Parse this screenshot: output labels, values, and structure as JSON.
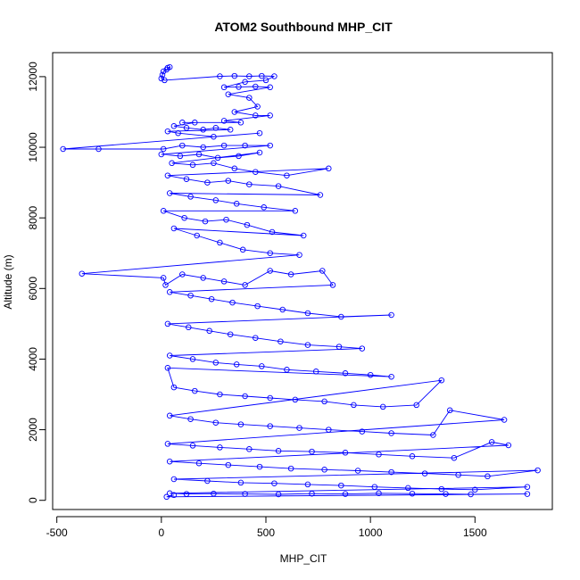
{
  "chart_data": {
    "type": "scatter",
    "title": "ATOM2 Southbound MHP_CIT",
    "xlabel": "MHP_CIT",
    "ylabel": "Altitude (m)",
    "xlim": [
      -520,
      1870
    ],
    "ylim": [
      -260,
      12680
    ],
    "x_ticks": [
      -500,
      0,
      500,
      1000,
      1500
    ],
    "x_tick_labels": [
      "-500",
      "0",
      "500",
      "1000",
      "1500"
    ],
    "y_ticks": [
      0,
      2000,
      4000,
      6000,
      8000,
      10000,
      12000
    ],
    "y_tick_labels": [
      "0",
      "2000",
      "4000",
      "6000",
      "8000",
      "10000",
      "12000"
    ],
    "grid": false,
    "legend": "none",
    "marker": "open-circle",
    "line": true,
    "color": "#0000ff",
    "series": [
      {
        "points": [
          [
            30,
            12250
          ],
          [
            40,
            12270
          ],
          [
            25,
            12200
          ],
          [
            10,
            12150
          ],
          [
            5,
            12050
          ],
          [
            0,
            11950
          ],
          [
            15,
            11900
          ],
          [
            280,
            12010
          ],
          [
            350,
            12020
          ],
          [
            420,
            12010
          ],
          [
            480,
            12020
          ],
          [
            540,
            12010
          ],
          [
            500,
            11900
          ],
          [
            400,
            11850
          ],
          [
            300,
            11700
          ],
          [
            370,
            11710
          ],
          [
            450,
            11720
          ],
          [
            520,
            11700
          ],
          [
            320,
            11500
          ],
          [
            420,
            11400
          ],
          [
            460,
            11150
          ],
          [
            350,
            11000
          ],
          [
            450,
            10900
          ],
          [
            520,
            10900
          ],
          [
            300,
            10750
          ],
          [
            380,
            10700
          ],
          [
            100,
            10700
          ],
          [
            160,
            10700
          ],
          [
            60,
            10600
          ],
          [
            120,
            10550
          ],
          [
            200,
            10500
          ],
          [
            260,
            10550
          ],
          [
            330,
            10500
          ],
          [
            30,
            10450
          ],
          [
            80,
            10400
          ],
          [
            250,
            10300
          ],
          [
            470,
            10400
          ],
          [
            -470,
            9950
          ],
          [
            -300,
            9950
          ],
          [
            10,
            9950
          ],
          [
            100,
            10050
          ],
          [
            200,
            10000
          ],
          [
            300,
            10050
          ],
          [
            400,
            10050
          ],
          [
            520,
            10050
          ],
          [
            0,
            9800
          ],
          [
            90,
            9750
          ],
          [
            180,
            9800
          ],
          [
            270,
            9700
          ],
          [
            370,
            9750
          ],
          [
            470,
            9850
          ],
          [
            50,
            9550
          ],
          [
            150,
            9500
          ],
          [
            250,
            9550
          ],
          [
            350,
            9400
          ],
          [
            450,
            9300
          ],
          [
            600,
            9200
          ],
          [
            800,
            9400
          ],
          [
            30,
            9200
          ],
          [
            120,
            9100
          ],
          [
            220,
            9000
          ],
          [
            320,
            9050
          ],
          [
            420,
            8950
          ],
          [
            560,
            8900
          ],
          [
            760,
            8650
          ],
          [
            40,
            8700
          ],
          [
            140,
            8600
          ],
          [
            260,
            8500
          ],
          [
            360,
            8400
          ],
          [
            490,
            8300
          ],
          [
            640,
            8200
          ],
          [
            10,
            8200
          ],
          [
            110,
            8000
          ],
          [
            210,
            7900
          ],
          [
            310,
            7950
          ],
          [
            410,
            7800
          ],
          [
            530,
            7600
          ],
          [
            680,
            7500
          ],
          [
            60,
            7700
          ],
          [
            170,
            7500
          ],
          [
            280,
            7300
          ],
          [
            390,
            7100
          ],
          [
            520,
            7000
          ],
          [
            660,
            6950
          ],
          [
            -380,
            6420
          ],
          [
            10,
            6300
          ],
          [
            20,
            6100
          ],
          [
            100,
            6400
          ],
          [
            200,
            6300
          ],
          [
            300,
            6200
          ],
          [
            400,
            6100
          ],
          [
            520,
            6500
          ],
          [
            620,
            6400
          ],
          [
            770,
            6500
          ],
          [
            820,
            6100
          ],
          [
            40,
            5900
          ],
          [
            140,
            5800
          ],
          [
            240,
            5700
          ],
          [
            340,
            5600
          ],
          [
            460,
            5500
          ],
          [
            580,
            5400
          ],
          [
            700,
            5300
          ],
          [
            860,
            5200
          ],
          [
            1100,
            5250
          ],
          [
            30,
            5000
          ],
          [
            130,
            4900
          ],
          [
            230,
            4800
          ],
          [
            330,
            4700
          ],
          [
            450,
            4600
          ],
          [
            570,
            4500
          ],
          [
            700,
            4400
          ],
          [
            850,
            4350
          ],
          [
            960,
            4300
          ],
          [
            40,
            4100
          ],
          [
            150,
            4000
          ],
          [
            260,
            3900
          ],
          [
            360,
            3850
          ],
          [
            480,
            3800
          ],
          [
            600,
            3700
          ],
          [
            740,
            3650
          ],
          [
            880,
            3600
          ],
          [
            1000,
            3550
          ],
          [
            1100,
            3500
          ],
          [
            30,
            3750
          ],
          [
            60,
            3200
          ],
          [
            160,
            3100
          ],
          [
            280,
            3000
          ],
          [
            400,
            2950
          ],
          [
            520,
            2900
          ],
          [
            640,
            2850
          ],
          [
            780,
            2800
          ],
          [
            920,
            2700
          ],
          [
            1060,
            2650
          ],
          [
            1220,
            2700
          ],
          [
            1340,
            3400
          ],
          [
            40,
            2400
          ],
          [
            140,
            2300
          ],
          [
            260,
            2200
          ],
          [
            380,
            2150
          ],
          [
            520,
            2100
          ],
          [
            660,
            2050
          ],
          [
            800,
            2000
          ],
          [
            960,
            1950
          ],
          [
            1100,
            1900
          ],
          [
            1300,
            1850
          ],
          [
            1380,
            2550
          ],
          [
            1640,
            2280
          ],
          [
            30,
            1600
          ],
          [
            150,
            1550
          ],
          [
            280,
            1500
          ],
          [
            420,
            1450
          ],
          [
            560,
            1400
          ],
          [
            720,
            1380
          ],
          [
            880,
            1350
          ],
          [
            1040,
            1300
          ],
          [
            1200,
            1250
          ],
          [
            1400,
            1200
          ],
          [
            1580,
            1650
          ],
          [
            1660,
            1560
          ],
          [
            40,
            1100
          ],
          [
            180,
            1050
          ],
          [
            320,
            1000
          ],
          [
            470,
            950
          ],
          [
            620,
            900
          ],
          [
            780,
            870
          ],
          [
            940,
            840
          ],
          [
            1100,
            800
          ],
          [
            1260,
            760
          ],
          [
            1420,
            720
          ],
          [
            1560,
            680
          ],
          [
            1800,
            850
          ],
          [
            60,
            600
          ],
          [
            220,
            550
          ],
          [
            380,
            500
          ],
          [
            540,
            480
          ],
          [
            700,
            450
          ],
          [
            860,
            420
          ],
          [
            1020,
            380
          ],
          [
            1180,
            350
          ],
          [
            1340,
            320
          ],
          [
            1500,
            300
          ],
          [
            1750,
            380
          ],
          [
            40,
            200
          ],
          [
            120,
            180
          ],
          [
            250,
            190
          ],
          [
            400,
            180
          ],
          [
            560,
            170
          ],
          [
            720,
            190
          ],
          [
            880,
            180
          ],
          [
            1040,
            200
          ],
          [
            1200,
            190
          ],
          [
            1360,
            180
          ],
          [
            1480,
            170
          ],
          [
            1750,
            180
          ],
          [
            25,
            100
          ],
          [
            60,
            150
          ]
        ]
      }
    ]
  }
}
